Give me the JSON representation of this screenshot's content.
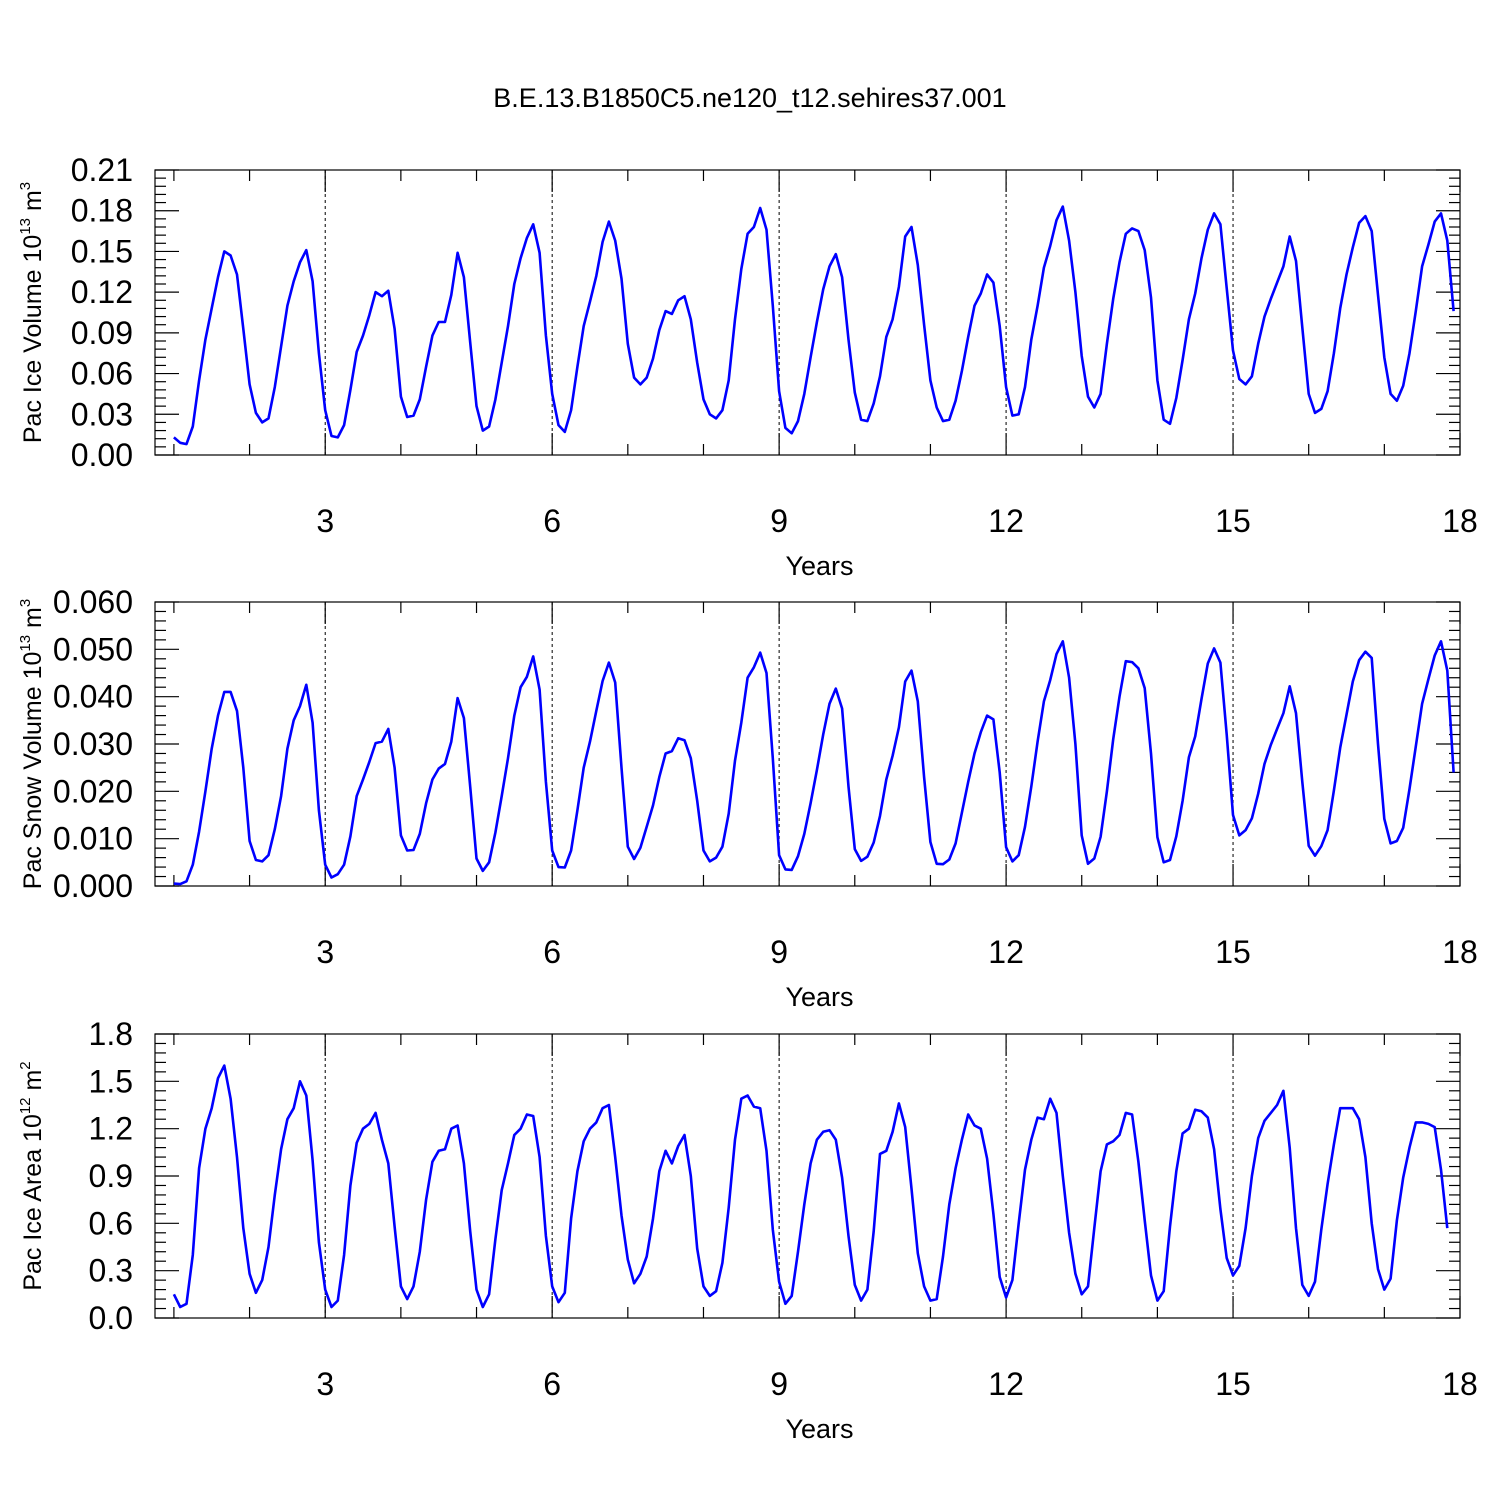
{
  "figure_title": "B.E.13.B1850C5.ne120_t12.sehires37.001",
  "colors": {
    "series": "#0000ff",
    "axis": "#000000"
  },
  "chart_data": [
    {
      "type": "line",
      "ylabel": {
        "main": "Pac Ice Volume 10",
        "sup": "13",
        "unit": " m",
        "unit_sup": "3"
      },
      "xlabel": "Years",
      "xlim": [
        0.75,
        18
      ],
      "ylim": [
        0,
        0.21
      ],
      "xticks": [
        3,
        6,
        9,
        12,
        15,
        18
      ],
      "xtick_labels": [
        "3",
        "6",
        "9",
        "12",
        "15",
        "18"
      ],
      "yticks": [
        0,
        0.03,
        0.06,
        0.09,
        0.12,
        0.15,
        0.18,
        0.21
      ],
      "ytick_labels": [
        "0.00",
        "0.03",
        "0.06",
        "0.09",
        "0.12",
        "0.15",
        "0.18",
        "0.21"
      ],
      "dashed_vlines": [
        3,
        6,
        9,
        12,
        15
      ],
      "series": [
        {
          "x_start": 1.0,
          "x_step": 0.08333,
          "values": [
            0.013,
            0.009,
            0.008,
            0.021,
            0.055,
            0.085,
            0.108,
            0.131,
            0.15,
            0.147,
            0.133,
            0.093,
            0.052,
            0.031,
            0.024,
            0.027,
            0.05,
            0.08,
            0.11,
            0.128,
            0.142,
            0.151,
            0.128,
            0.075,
            0.033,
            0.014,
            0.013,
            0.022,
            0.048,
            0.076,
            0.088,
            0.103,
            0.12,
            0.117,
            0.121,
            0.093,
            0.043,
            0.028,
            0.029,
            0.041,
            0.065,
            0.088,
            0.098,
            0.098,
            0.118,
            0.149,
            0.131,
            0.083,
            0.036,
            0.018,
            0.021,
            0.041,
            0.068,
            0.095,
            0.126,
            0.145,
            0.16,
            0.17,
            0.149,
            0.088,
            0.045,
            0.022,
            0.017,
            0.033,
            0.065,
            0.095,
            0.113,
            0.132,
            0.157,
            0.172,
            0.158,
            0.13,
            0.082,
            0.057,
            0.052,
            0.057,
            0.071,
            0.092,
            0.106,
            0.104,
            0.114,
            0.117,
            0.1,
            0.068,
            0.041,
            0.03,
            0.027,
            0.033,
            0.055,
            0.1,
            0.137,
            0.163,
            0.168,
            0.182,
            0.166,
            0.11,
            0.047,
            0.02,
            0.016,
            0.025,
            0.045,
            0.072,
            0.098,
            0.122,
            0.139,
            0.148,
            0.131,
            0.085,
            0.046,
            0.026,
            0.025,
            0.038,
            0.058,
            0.087,
            0.1,
            0.124,
            0.161,
            0.168,
            0.14,
            0.096,
            0.055,
            0.035,
            0.025,
            0.026,
            0.04,
            0.062,
            0.087,
            0.11,
            0.119,
            0.133,
            0.127,
            0.095,
            0.05,
            0.029,
            0.03,
            0.05,
            0.085,
            0.11,
            0.138,
            0.154,
            0.173,
            0.183,
            0.158,
            0.12,
            0.073,
            0.043,
            0.035,
            0.045,
            0.082,
            0.115,
            0.142,
            0.163,
            0.167,
            0.165,
            0.151,
            0.116,
            0.055,
            0.026,
            0.023,
            0.042,
            0.07,
            0.1,
            0.119,
            0.145,
            0.166,
            0.178,
            0.17,
            0.123,
            0.077,
            0.056,
            0.052,
            0.058,
            0.082,
            0.102,
            0.115,
            0.127,
            0.139,
            0.161,
            0.143,
            0.094,
            0.045,
            0.031,
            0.034,
            0.047,
            0.075,
            0.108,
            0.133,
            0.153,
            0.171,
            0.176,
            0.165,
            0.118,
            0.072,
            0.045,
            0.04,
            0.051,
            0.075,
            0.106,
            0.139,
            0.155,
            0.172,
            0.178,
            0.158,
            0.106
          ]
        }
      ]
    },
    {
      "type": "line",
      "ylabel": {
        "main": "Pac Snow Volume 10",
        "sup": "13",
        "unit": " m",
        "unit_sup": "3"
      },
      "xlabel": "Years",
      "xlim": [
        0.75,
        18
      ],
      "ylim": [
        0,
        0.06
      ],
      "xticks": [
        3,
        6,
        9,
        12,
        15,
        18
      ],
      "xtick_labels": [
        "3",
        "6",
        "9",
        "12",
        "15",
        "18"
      ],
      "yticks": [
        0,
        0.01,
        0.02,
        0.03,
        0.04,
        0.05,
        0.06
      ],
      "ytick_labels": [
        "0.000",
        "0.010",
        "0.020",
        "0.030",
        "0.040",
        "0.050",
        "0.060"
      ],
      "dashed_vlines": [
        3,
        6,
        9,
        12,
        15
      ],
      "series": [
        {
          "x_start": 1.0,
          "x_step": 0.08333,
          "values": [
            0.0005,
            0.0004,
            0.001,
            0.0045,
            0.0115,
            0.02,
            0.029,
            0.036,
            0.041,
            0.041,
            0.037,
            0.025,
            0.0095,
            0.0055,
            0.0052,
            0.0065,
            0.012,
            0.019,
            0.029,
            0.035,
            0.038,
            0.0425,
            0.0345,
            0.016,
            0.0045,
            0.0018,
            0.0025,
            0.0045,
            0.0105,
            0.019,
            0.0225,
            0.0262,
            0.0302,
            0.0305,
            0.0332,
            0.025,
            0.0107,
            0.0075,
            0.0076,
            0.011,
            0.0175,
            0.0225,
            0.0248,
            0.0258,
            0.0305,
            0.0397,
            0.0355,
            0.021,
            0.0058,
            0.0032,
            0.005,
            0.0113,
            0.019,
            0.027,
            0.036,
            0.042,
            0.0442,
            0.0485,
            0.0415,
            0.022,
            0.0075,
            0.004,
            0.0039,
            0.0075,
            0.016,
            0.025,
            0.0305,
            0.037,
            0.0433,
            0.0472,
            0.043,
            0.025,
            0.0083,
            0.0057,
            0.0081,
            0.0125,
            0.017,
            0.023,
            0.028,
            0.0285,
            0.0312,
            0.0308,
            0.027,
            0.018,
            0.0075,
            0.0052,
            0.006,
            0.0083,
            0.0153,
            0.0265,
            0.0345,
            0.044,
            0.0462,
            0.0493,
            0.045,
            0.027,
            0.0065,
            0.0035,
            0.0034,
            0.0063,
            0.011,
            0.0175,
            0.0245,
            0.032,
            0.0385,
            0.0417,
            0.0375,
            0.021,
            0.0078,
            0.0053,
            0.0062,
            0.0092,
            0.0148,
            0.0225,
            0.0275,
            0.0335,
            0.0432,
            0.0455,
            0.039,
            0.023,
            0.0093,
            0.0047,
            0.0046,
            0.0056,
            0.009,
            0.0155,
            0.022,
            0.028,
            0.0325,
            0.036,
            0.0352,
            0.024,
            0.0082,
            0.0052,
            0.0065,
            0.0125,
            0.021,
            0.0305,
            0.039,
            0.0435,
            0.049,
            0.0517,
            0.044,
            0.03,
            0.0107,
            0.0047,
            0.0058,
            0.0104,
            0.02,
            0.031,
            0.04,
            0.0475,
            0.0473,
            0.046,
            0.0418,
            0.028,
            0.0103,
            0.005,
            0.0055,
            0.0105,
            0.018,
            0.0272,
            0.0316,
            0.0395,
            0.047,
            0.0502,
            0.0472,
            0.032,
            0.015,
            0.0107,
            0.0118,
            0.0143,
            0.0195,
            0.0258,
            0.0298,
            0.0332,
            0.0365,
            0.0422,
            0.0365,
            0.022,
            0.0085,
            0.0064,
            0.0084,
            0.0118,
            0.0202,
            0.0292,
            0.0362,
            0.0432,
            0.0477,
            0.0495,
            0.0482,
            0.03,
            0.0142,
            0.009,
            0.0095,
            0.0123,
            0.0205,
            0.0295,
            0.0385,
            0.0437,
            0.0487,
            0.0517,
            0.0455,
            0.024
          ]
        }
      ]
    },
    {
      "type": "line",
      "ylabel": {
        "main": "Pac Ice Area 10",
        "sup": "12",
        "unit": " m",
        "unit_sup": "2"
      },
      "xlabel": "Years",
      "xlim": [
        0.75,
        18
      ],
      "ylim": [
        0,
        1.8
      ],
      "xticks": [
        3,
        6,
        9,
        12,
        15,
        18
      ],
      "xtick_labels": [
        "3",
        "6",
        "9",
        "12",
        "15",
        "18"
      ],
      "yticks": [
        0,
        0.3,
        0.6,
        0.9,
        1.2,
        1.5,
        1.8
      ],
      "ytick_labels": [
        "0.0",
        "0.3",
        "0.6",
        "0.9",
        "1.2",
        "1.5",
        "1.8"
      ],
      "dashed_vlines": [
        3,
        6,
        9,
        12,
        15
      ],
      "series": [
        {
          "x_start": 1.0,
          "x_step": 0.08333,
          "values": [
            0.15,
            0.07,
            0.09,
            0.4,
            0.95,
            1.2,
            1.33,
            1.52,
            1.6,
            1.39,
            1.02,
            0.57,
            0.28,
            0.16,
            0.24,
            0.45,
            0.78,
            1.07,
            1.26,
            1.33,
            1.5,
            1.41,
            1.0,
            0.48,
            0.18,
            0.07,
            0.11,
            0.4,
            0.84,
            1.11,
            1.2,
            1.23,
            1.3,
            1.13,
            0.98,
            0.58,
            0.2,
            0.12,
            0.2,
            0.42,
            0.75,
            0.99,
            1.06,
            1.07,
            1.2,
            1.22,
            0.98,
            0.55,
            0.18,
            0.07,
            0.15,
            0.5,
            0.81,
            0.98,
            1.16,
            1.2,
            1.29,
            1.28,
            1.02,
            0.52,
            0.2,
            0.1,
            0.16,
            0.63,
            0.93,
            1.12,
            1.2,
            1.24,
            1.33,
            1.35,
            1.02,
            0.65,
            0.37,
            0.22,
            0.28,
            0.39,
            0.63,
            0.93,
            1.06,
            0.98,
            1.09,
            1.16,
            0.9,
            0.44,
            0.2,
            0.14,
            0.17,
            0.35,
            0.7,
            1.13,
            1.39,
            1.41,
            1.34,
            1.33,
            1.06,
            0.56,
            0.23,
            0.09,
            0.14,
            0.42,
            0.72,
            0.98,
            1.13,
            1.18,
            1.19,
            1.13,
            0.89,
            0.52,
            0.21,
            0.11,
            0.18,
            0.55,
            1.04,
            1.06,
            1.18,
            1.36,
            1.21,
            0.82,
            0.41,
            0.2,
            0.11,
            0.12,
            0.39,
            0.72,
            0.95,
            1.13,
            1.29,
            1.22,
            1.2,
            1.01,
            0.66,
            0.26,
            0.13,
            0.24,
            0.6,
            0.94,
            1.13,
            1.27,
            1.26,
            1.39,
            1.3,
            0.9,
            0.54,
            0.28,
            0.15,
            0.2,
            0.57,
            0.93,
            1.1,
            1.12,
            1.16,
            1.3,
            1.29,
            0.99,
            0.62,
            0.27,
            0.11,
            0.17,
            0.58,
            0.93,
            1.17,
            1.2,
            1.32,
            1.31,
            1.27,
            1.07,
            0.69,
            0.38,
            0.27,
            0.33,
            0.57,
            0.9,
            1.14,
            1.25,
            1.3,
            1.35,
            1.44,
            1.08,
            0.57,
            0.21,
            0.14,
            0.23,
            0.56,
            0.85,
            1.1,
            1.33,
            1.33,
            1.33,
            1.26,
            1.02,
            0.6,
            0.31,
            0.18,
            0.25,
            0.62,
            0.89,
            1.08,
            1.24,
            1.24,
            1.23,
            1.21,
            0.94,
            0.57
          ]
        }
      ]
    }
  ]
}
